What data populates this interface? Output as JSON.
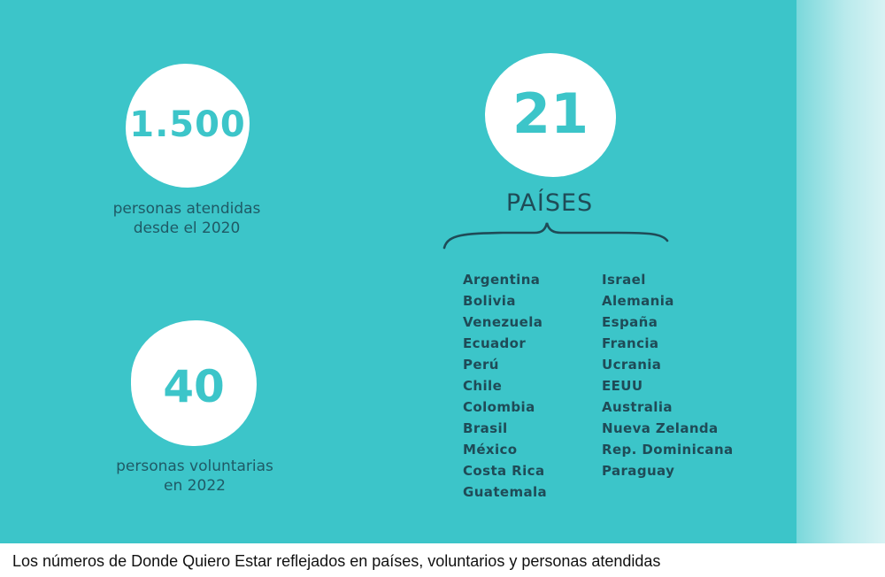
{
  "stats": {
    "attended": {
      "number": "1.500",
      "caption_line1": "personas atendidas",
      "caption_line2": "desde el 2020"
    },
    "countries": {
      "number": "21",
      "label": "PAÍSES"
    },
    "volunteers": {
      "number": "40",
      "caption_line1": "personas voluntarias",
      "caption_line2": "en 2022"
    }
  },
  "countries_left": [
    "Argentina",
    "Bolivia",
    "Venezuela",
    "Ecuador",
    "Perú",
    "Chile",
    "Colombia",
    "Brasil",
    "México",
    "Costa Rica",
    "Guatemala"
  ],
  "countries_right": [
    "Israel",
    "Alemania",
    "España",
    "Francia",
    "Ucrania",
    "EEUU",
    "Australia",
    "Nueva Zelanda",
    "Rep. Dominicana",
    "Paraguay"
  ],
  "caption": "Los números de Donde Quiero Estar reflejados en países, voluntarios y personas atendidas",
  "colors": {
    "background": "#3cc5c9",
    "circle": "#ffffff",
    "number": "#3cc5c9",
    "text": "#1f4b57"
  }
}
